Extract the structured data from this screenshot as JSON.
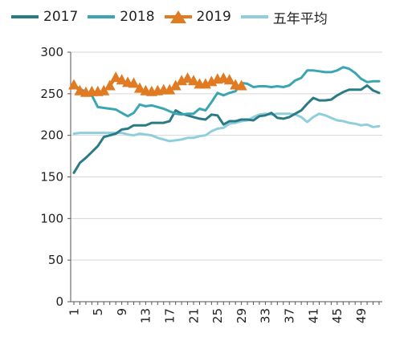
{
  "chart_data": {
    "type": "line",
    "title": "",
    "xlabel": "",
    "ylabel": "",
    "ylim": [
      0,
      300
    ],
    "yticks": [
      0,
      50,
      100,
      150,
      200,
      250,
      300
    ],
    "xlim": [
      1,
      52
    ],
    "xticks": [
      1,
      5,
      9,
      13,
      17,
      21,
      25,
      29,
      33,
      37,
      41,
      45,
      49
    ],
    "grid": "horizontal",
    "legend": "top",
    "series": [
      {
        "name": "2017",
        "color": "#2b7b87",
        "marker": "none",
        "x": [
          1,
          2,
          3,
          4,
          5,
          6,
          7,
          8,
          9,
          10,
          11,
          12,
          13,
          14,
          15,
          16,
          17,
          18,
          19,
          20,
          21,
          22,
          23,
          24,
          25,
          26,
          27,
          28,
          29,
          30,
          31,
          32,
          33,
          34,
          35,
          36,
          37,
          38,
          39,
          40,
          41,
          42,
          43,
          44,
          45,
          46,
          47,
          48,
          49,
          50,
          51,
          52
        ],
        "values": [
          155,
          167,
          173,
          180,
          187,
          198,
          200,
          202,
          207,
          208,
          212,
          212,
          212,
          215,
          215,
          215,
          217,
          230,
          226,
          224,
          222,
          220,
          219,
          225,
          224,
          213,
          217,
          217,
          219,
          219,
          218,
          223,
          224,
          227,
          221,
          220,
          222,
          226,
          230,
          238,
          245,
          242,
          242,
          243,
          248,
          252,
          255,
          255,
          255,
          260,
          254,
          251
        ]
      },
      {
        "name": "2018",
        "color": "#3ba6b2",
        "marker": "none",
        "x": [
          1,
          2,
          3,
          4,
          5,
          6,
          7,
          8,
          9,
          10,
          11,
          12,
          13,
          14,
          15,
          16,
          17,
          18,
          19,
          20,
          21,
          22,
          23,
          24,
          25,
          26,
          27,
          28,
          29,
          30,
          31,
          32,
          33,
          34,
          35,
          36,
          37,
          38,
          39,
          40,
          41,
          42,
          43,
          44,
          45,
          46,
          47,
          48,
          49,
          50,
          51,
          52
        ],
        "values": [
          260,
          256,
          252,
          248,
          234,
          233,
          232,
          231,
          227,
          223,
          227,
          237,
          235,
          236,
          234,
          232,
          229,
          226,
          225,
          226,
          226,
          232,
          230,
          240,
          251,
          248,
          251,
          253,
          263,
          262,
          258,
          259,
          259,
          258,
          259,
          258,
          260,
          266,
          269,
          278,
          278,
          277,
          276,
          276,
          278,
          282,
          280,
          275,
          268,
          264,
          265,
          265
        ]
      },
      {
        "name": "2019",
        "color": "#e07b22",
        "marker": "triangle",
        "x": [
          1,
          2,
          3,
          4,
          5,
          6,
          7,
          8,
          9,
          10,
          11,
          12,
          13,
          14,
          15,
          16,
          17,
          18,
          19,
          20,
          21,
          22,
          23,
          24,
          25,
          26,
          27,
          28,
          29
        ],
        "values": [
          260,
          253,
          251,
          252,
          252,
          253,
          259,
          269,
          266,
          263,
          262,
          256,
          253,
          252,
          253,
          254,
          254,
          259,
          265,
          268,
          265,
          261,
          261,
          264,
          267,
          268,
          266,
          260,
          259
        ]
      },
      {
        "name": "五年平均",
        "color": "#8fcfdc",
        "marker": "none",
        "x": [
          1,
          2,
          3,
          4,
          5,
          6,
          7,
          8,
          9,
          10,
          11,
          12,
          13,
          14,
          15,
          16,
          17,
          18,
          19,
          20,
          21,
          22,
          23,
          24,
          25,
          26,
          27,
          28,
          29,
          30,
          31,
          32,
          33,
          34,
          35,
          36,
          37,
          38,
          39,
          40,
          41,
          42,
          43,
          44,
          45,
          46,
          47,
          48,
          49,
          50,
          51,
          52
        ],
        "values": [
          202,
          203,
          203,
          203,
          203,
          203,
          203,
          203,
          203,
          201,
          200,
          202,
          201,
          200,
          197,
          195,
          193,
          194,
          195,
          197,
          197,
          199,
          200,
          205,
          208,
          209,
          214,
          215,
          217,
          218,
          222,
          225,
          226,
          225,
          226,
          226,
          226,
          225,
          222,
          216,
          222,
          226,
          224,
          221,
          218,
          217,
          215,
          214,
          212,
          213,
          210,
          211
        ]
      }
    ]
  }
}
